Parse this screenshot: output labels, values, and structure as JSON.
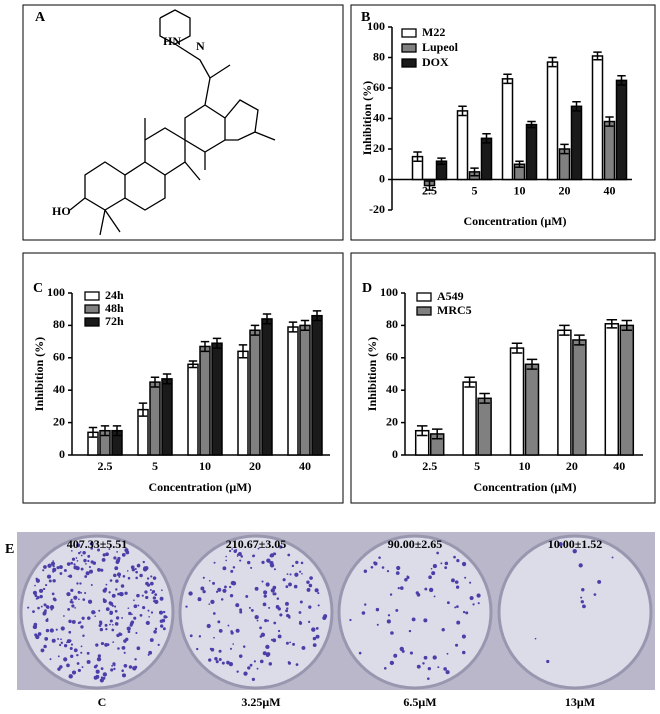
{
  "chart_data": [
    {
      "type": "bar",
      "label": "B",
      "y_label": "Inhibition (%)",
      "x_label": "Concentration (μM)",
      "categories": [
        "2.5",
        "5",
        "10",
        "20",
        "40"
      ],
      "ylim": [
        -20,
        100
      ],
      "yticks": [
        -20,
        0,
        20,
        40,
        60,
        80,
        100
      ],
      "legend": "upper left",
      "series": [
        {
          "name": "M22",
          "color": "#ffffff",
          "values": [
            15,
            45,
            66,
            77,
            81
          ],
          "error": [
            3,
            3,
            3,
            3,
            2.5
          ]
        },
        {
          "name": "Lupeol",
          "color": "#808080",
          "values": [
            -4,
            5,
            10,
            20,
            38
          ],
          "error": [
            3,
            2.5,
            2,
            3,
            3
          ]
        },
        {
          "name": "DOX",
          "color": "#1a1a1a",
          "values": [
            12,
            27,
            36,
            48,
            65
          ],
          "error": [
            2,
            3,
            2,
            3,
            3
          ]
        }
      ]
    },
    {
      "type": "bar",
      "label": "C",
      "y_label": "Inhibition (%)",
      "x_label": "Concentration (μM)",
      "categories": [
        "2.5",
        "5",
        "10",
        "20",
        "40"
      ],
      "ylim": [
        0,
        100
      ],
      "yticks": [
        0,
        20,
        40,
        60,
        80,
        100
      ],
      "legend": "upper left",
      "series": [
        {
          "name": "24h",
          "color": "#ffffff",
          "values": [
            14,
            28,
            56,
            64,
            79
          ],
          "error": [
            3,
            4,
            2,
            4,
            3
          ]
        },
        {
          "name": "48h",
          "color": "#808080",
          "values": [
            15,
            45,
            67,
            77,
            80
          ],
          "error": [
            3,
            3,
            3,
            3,
            3
          ]
        },
        {
          "name": "72h",
          "color": "#1a1a1a",
          "values": [
            15,
            47,
            69,
            84,
            86
          ],
          "error": [
            3,
            3,
            3,
            3,
            3
          ]
        }
      ]
    },
    {
      "type": "bar",
      "label": "D",
      "y_label": "Inhibition (%)",
      "x_label": "Concentration (μM)",
      "categories": [
        "2.5",
        "5",
        "10",
        "20",
        "40"
      ],
      "ylim": [
        0,
        100
      ],
      "yticks": [
        0,
        20,
        40,
        60,
        80,
        100
      ],
      "legend": "upper left",
      "series": [
        {
          "name": "A549",
          "color": "#ffffff",
          "values": [
            15,
            45,
            66,
            77,
            81
          ],
          "error": [
            3,
            3,
            3,
            3,
            2.5
          ]
        },
        {
          "name": "MRC5",
          "color": "#808080",
          "values": [
            13,
            35,
            56,
            71,
            80
          ],
          "error": [
            3,
            3,
            3,
            3,
            3
          ]
        }
      ]
    }
  ],
  "structure": {
    "label": "A",
    "atoms": [
      "HN",
      "N",
      "HO"
    ]
  },
  "colony_assay": {
    "label": "E",
    "counts": [
      "407.33±5.51",
      "210.67±3.05",
      "90.00±2.65",
      "10.00±1.52"
    ],
    "conditions": [
      "C",
      "3.25μM",
      "6.5μM",
      "13μM"
    ]
  }
}
